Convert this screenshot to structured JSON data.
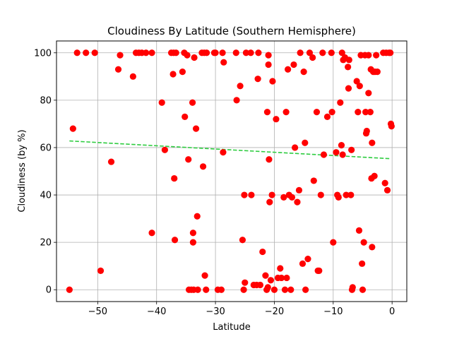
{
  "chart_data": {
    "type": "scatter",
    "title": "Cloudiness By Latitude (Southern Hemisphere)",
    "xlabel": "Latitude",
    "ylabel": "Cloudiness (by %)",
    "xlim": [
      -57,
      2.5
    ],
    "ylim": [
      -5,
      105
    ],
    "xticks": [
      -50,
      -40,
      -30,
      -20,
      -10,
      0
    ],
    "xtick_labels": [
      "−50",
      "−40",
      "−30",
      "−20",
      "−10",
      "0"
    ],
    "yticks": [
      0,
      20,
      40,
      60,
      80,
      100
    ],
    "ytick_labels": [
      "0",
      "20",
      "40",
      "60",
      "80",
      "100"
    ],
    "grid": true,
    "legend": "none",
    "colors": {
      "points": "#ff0000",
      "regression": "#2ecc40",
      "grid": "#b0b0b0"
    },
    "regression_line": {
      "style": "dashed",
      "x": [
        -54.8,
        -0.2
      ],
      "y": [
        62.8,
        55.3
      ]
    },
    "points": [
      [
        -54.8,
        0
      ],
      [
        -54.2,
        68
      ],
      [
        -53.5,
        100
      ],
      [
        -52.0,
        100
      ],
      [
        -50.5,
        100
      ],
      [
        -49.5,
        8
      ],
      [
        -47.7,
        54
      ],
      [
        -46.5,
        93
      ],
      [
        -46.2,
        99
      ],
      [
        -44.0,
        90
      ],
      [
        -43.5,
        100
      ],
      [
        -43.0,
        100
      ],
      [
        -42.5,
        100
      ],
      [
        -41.8,
        100
      ],
      [
        -40.8,
        100
      ],
      [
        -40.8,
        24
      ],
      [
        -39.1,
        79
      ],
      [
        -38.6,
        59
      ],
      [
        -37.5,
        100
      ],
      [
        -37.2,
        91
      ],
      [
        -37.1,
        100
      ],
      [
        -37.0,
        47
      ],
      [
        -36.9,
        21
      ],
      [
        -36.7,
        100
      ],
      [
        -35.6,
        92
      ],
      [
        -35.3,
        100
      ],
      [
        -35.2,
        73
      ],
      [
        -34.8,
        99
      ],
      [
        -34.6,
        55
      ],
      [
        -34.5,
        0
      ],
      [
        -34.1,
        0
      ],
      [
        -33.9,
        79
      ],
      [
        -33.8,
        24
      ],
      [
        -33.8,
        20
      ],
      [
        -33.7,
        0
      ],
      [
        -33.6,
        98
      ],
      [
        -33.3,
        68
      ],
      [
        -33.1,
        31
      ],
      [
        -33.0,
        0
      ],
      [
        -32.3,
        100
      ],
      [
        -32.1,
        52
      ],
      [
        -31.9,
        100
      ],
      [
        -31.8,
        6
      ],
      [
        -31.6,
        0
      ],
      [
        -31.5,
        100
      ],
      [
        -30.2,
        100
      ],
      [
        -30.0,
        100
      ],
      [
        -29.6,
        0
      ],
      [
        -29.0,
        0
      ],
      [
        -28.8,
        100
      ],
      [
        -28.7,
        58
      ],
      [
        -28.6,
        96
      ],
      [
        -26.5,
        100
      ],
      [
        -26.4,
        80
      ],
      [
        -25.8,
        86
      ],
      [
        -25.4,
        21
      ],
      [
        -25.2,
        0
      ],
      [
        -25.1,
        40
      ],
      [
        -25.0,
        3
      ],
      [
        -24.8,
        100
      ],
      [
        -24.0,
        100
      ],
      [
        -23.9,
        40
      ],
      [
        -23.5,
        2
      ],
      [
        -23.0,
        2
      ],
      [
        -22.8,
        89
      ],
      [
        -22.7,
        100
      ],
      [
        -22.4,
        2
      ],
      [
        -22.0,
        16
      ],
      [
        -21.5,
        6
      ],
      [
        -21.3,
        0
      ],
      [
        -21.2,
        75
      ],
      [
        -21.1,
        1
      ],
      [
        -21.0,
        99
      ],
      [
        -21.0,
        95
      ],
      [
        -20.9,
        55
      ],
      [
        -20.8,
        37
      ],
      [
        -20.6,
        4
      ],
      [
        -20.4,
        40
      ],
      [
        -20.3,
        88
      ],
      [
        -20.0,
        0
      ],
      [
        -19.7,
        72
      ],
      [
        -19.4,
        5
      ],
      [
        -19.0,
        9
      ],
      [
        -18.8,
        5
      ],
      [
        -18.4,
        39
      ],
      [
        -18.2,
        0
      ],
      [
        -18.0,
        75
      ],
      [
        -17.9,
        5
      ],
      [
        -17.7,
        93
      ],
      [
        -17.5,
        40
      ],
      [
        -17.2,
        0
      ],
      [
        -17.0,
        39
      ],
      [
        -16.7,
        95
      ],
      [
        -16.5,
        60
      ],
      [
        -16.1,
        37
      ],
      [
        -15.8,
        42
      ],
      [
        -15.6,
        100
      ],
      [
        -15.2,
        11
      ],
      [
        -15.0,
        92
      ],
      [
        -14.8,
        62
      ],
      [
        -14.7,
        0
      ],
      [
        -14.3,
        13
      ],
      [
        -14.0,
        100
      ],
      [
        -13.5,
        98
      ],
      [
        -13.3,
        46
      ],
      [
        -12.8,
        75
      ],
      [
        -12.6,
        8
      ],
      [
        -12.4,
        8
      ],
      [
        -12.1,
        40
      ],
      [
        -11.8,
        100
      ],
      [
        -11.6,
        57
      ],
      [
        -11.0,
        73
      ],
      [
        -10.3,
        100
      ],
      [
        -10.2,
        75
      ],
      [
        -10.0,
        20
      ],
      [
        -9.5,
        58
      ],
      [
        -9.3,
        40
      ],
      [
        -9.1,
        39
      ],
      [
        -8.8,
        79
      ],
      [
        -8.6,
        61
      ],
      [
        -8.5,
        100
      ],
      [
        -8.4,
        57
      ],
      [
        -8.3,
        97
      ],
      [
        -8.0,
        98
      ],
      [
        -7.8,
        40
      ],
      [
        -7.5,
        94
      ],
      [
        -7.4,
        85
      ],
      [
        -7.3,
        97
      ],
      [
        -7.0,
        40
      ],
      [
        -6.9,
        59
      ],
      [
        -6.8,
        0
      ],
      [
        -6.7,
        1
      ],
      [
        -6.0,
        88
      ],
      [
        -5.8,
        75
      ],
      [
        -5.6,
        25
      ],
      [
        -5.5,
        86
      ],
      [
        -5.3,
        99
      ],
      [
        -5.1,
        11
      ],
      [
        -5.0,
        0
      ],
      [
        -4.8,
        20
      ],
      [
        -4.6,
        99
      ],
      [
        -4.5,
        75
      ],
      [
        -4.4,
        66
      ],
      [
        -4.3,
        67
      ],
      [
        -4.0,
        83
      ],
      [
        -4.0,
        99
      ],
      [
        -3.7,
        75
      ],
      [
        -3.6,
        93
      ],
      [
        -3.5,
        47
      ],
      [
        -3.4,
        62
      ],
      [
        -3.4,
        18
      ],
      [
        -3.2,
        92
      ],
      [
        -3.0,
        48
      ],
      [
        -2.9,
        92
      ],
      [
        -2.7,
        99
      ],
      [
        -2.5,
        92
      ],
      [
        -1.5,
        100
      ],
      [
        -1.2,
        45
      ],
      [
        -1.0,
        100
      ],
      [
        -0.8,
        42
      ],
      [
        -0.5,
        100
      ],
      [
        -0.3,
        100
      ],
      [
        -0.2,
        70
      ],
      [
        -0.1,
        69
      ]
    ]
  }
}
